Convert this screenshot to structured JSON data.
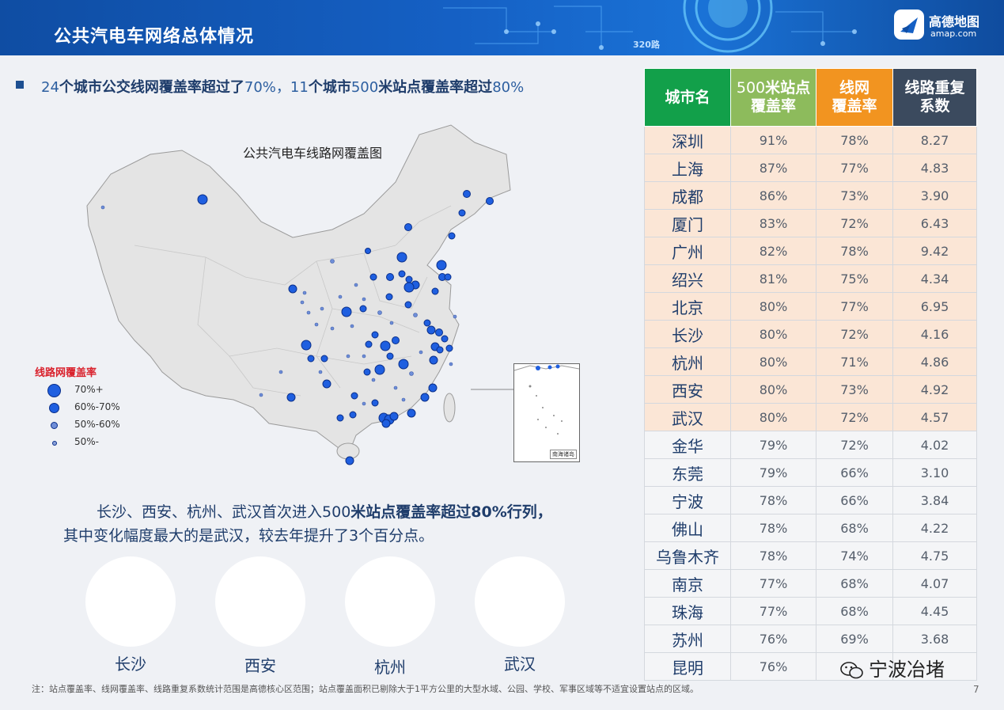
{
  "header": {
    "title": "公共汽电车网络总体情况",
    "road_sign": "320路",
    "logo_cn": "高德地图",
    "logo_en": "amap.com"
  },
  "headline": {
    "p1": "24",
    "p2": "个城市公交线网覆盖率超过了",
    "p3": "70%，11",
    "p4": "个城市",
    "p5": "500",
    "p6": "米站点覆盖率超过",
    "p7": "80%"
  },
  "map": {
    "title": "公共汽电车线路网覆盖图",
    "inset_label": "南海诸岛",
    "legend_title": "线路网覆盖率",
    "legend": [
      "70%+",
      "60%-70%",
      "50%-60%",
      "50%-"
    ]
  },
  "paragraph": {
    "line1_a": "长沙、西安、杭州、武汉首次进入",
    "line1_b": "500",
    "line1_c": "米站点覆盖率超过",
    "line1_d": "80%行列，",
    "line2_a": "其中变化幅度最大的是武汉，较去年提升了",
    "line2_b": "3",
    "line2_c": "个百分点。"
  },
  "circles": [
    "长沙",
    "西安",
    "杭州",
    "武汉"
  ],
  "table": {
    "headers": {
      "city": "城市名",
      "station_a": "500",
      "station_b": "米站点",
      "station_c": "覆盖率",
      "line_a": "线网",
      "line_b": "覆盖率",
      "rep_a": "线路重复",
      "rep_b": "系数"
    },
    "rows": [
      [
        "深圳",
        "91%",
        "78%",
        "8.27"
      ],
      [
        "上海",
        "87%",
        "77%",
        "4.83"
      ],
      [
        "成都",
        "86%",
        "73%",
        "3.90"
      ],
      [
        "厦门",
        "83%",
        "72%",
        "6.43"
      ],
      [
        "广州",
        "82%",
        "78%",
        "9.42"
      ],
      [
        "绍兴",
        "81%",
        "75%",
        "4.34"
      ],
      [
        "北京",
        "80%",
        "77%",
        "6.95"
      ],
      [
        "长沙",
        "80%",
        "72%",
        "4.16"
      ],
      [
        "杭州",
        "80%",
        "71%",
        "4.86"
      ],
      [
        "西安",
        "80%",
        "73%",
        "4.92"
      ],
      [
        "武汉",
        "80%",
        "72%",
        "4.57"
      ],
      [
        "金华",
        "79%",
        "72%",
        "4.02"
      ],
      [
        "东莞",
        "79%",
        "66%",
        "3.10"
      ],
      [
        "宁波",
        "78%",
        "66%",
        "3.84"
      ],
      [
        "佛山",
        "78%",
        "68%",
        "4.22"
      ],
      [
        "乌鲁木齐",
        "78%",
        "74%",
        "4.75"
      ],
      [
        "南京",
        "77%",
        "68%",
        "4.07"
      ],
      [
        "珠海",
        "77%",
        "68%",
        "4.45"
      ],
      [
        "苏州",
        "76%",
        "69%",
        "3.68"
      ],
      [
        "昆明",
        "76%",
        "",
        ""
      ]
    ]
  },
  "footnote": "注：站点覆盖率、线网覆盖率、线路重复系数统计范围是高德核心区范围；站点覆盖面积已剔除大于1平方公里的大型水域、公园、学校、军事区域等不适宜设置站点的区域。",
  "page_number": "7",
  "watermark": "宁波冶堵"
}
